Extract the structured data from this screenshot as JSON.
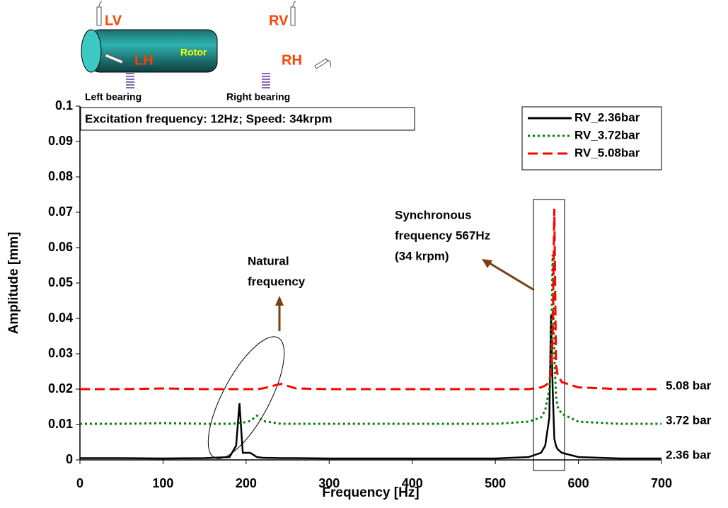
{
  "chart_data": {
    "type": "line",
    "x_label": "Frequency [Hz]",
    "y_label": "Amplitude [mm]",
    "x": [
      0,
      50,
      100,
      150,
      180,
      188,
      192,
      196,
      205,
      213,
      220,
      242,
      260,
      300,
      400,
      500,
      540,
      555,
      560,
      565,
      567,
      569,
      571,
      573,
      575,
      580,
      600,
      650,
      700
    ],
    "series": [
      {
        "name": "RV_2.36bar",
        "color": "#000000",
        "dash": "solid",
        "end_label": "2.36 bar",
        "values": [
          0.0005,
          0.0005,
          0.0004,
          0.0005,
          0.0008,
          0.004,
          0.016,
          0.002,
          0.002,
          0.0008,
          0.0006,
          0.0005,
          0.0005,
          0.0004,
          0.0004,
          0.0004,
          0.0008,
          0.002,
          0.004,
          0.012,
          0.041,
          0.02,
          0.006,
          0.004,
          0.003,
          0.002,
          0.0008,
          0.0004,
          0.0004
        ]
      },
      {
        "name": "RV_3.72bar",
        "color": "#008000",
        "dash": "dot",
        "end_label": "3.72 bar",
        "values": [
          0.0102,
          0.0102,
          0.0104,
          0.0102,
          0.0102,
          0.0103,
          0.0105,
          0.0105,
          0.011,
          0.0125,
          0.011,
          0.0102,
          0.0102,
          0.0102,
          0.0102,
          0.0102,
          0.0108,
          0.012,
          0.014,
          0.02,
          0.03,
          0.058,
          0.03,
          0.018,
          0.015,
          0.013,
          0.0108,
          0.0102,
          0.0102
        ]
      },
      {
        "name": "RV_5.08bar",
        "color": "#ff0000",
        "dash": "dash",
        "end_label": "5.08 bar",
        "values": [
          0.02,
          0.02,
          0.0202,
          0.02,
          0.02,
          0.02,
          0.02,
          0.02,
          0.02,
          0.02,
          0.0202,
          0.0215,
          0.0202,
          0.02,
          0.02,
          0.02,
          0.02,
          0.0205,
          0.021,
          0.022,
          0.025,
          0.035,
          0.071,
          0.027,
          0.024,
          0.022,
          0.0205,
          0.02,
          0.02
        ]
      }
    ],
    "xlim": [
      0,
      700
    ],
    "ylim": [
      0,
      0.1
    ],
    "xticks": [
      0,
      100,
      200,
      300,
      400,
      500,
      600,
      700
    ],
    "yticks": [
      0,
      0.01,
      0.02,
      0.03,
      0.04,
      0.05,
      0.06,
      0.07,
      0.08,
      0.09,
      0.1
    ],
    "legend": "top-right",
    "info_box": "Excitation frequency: 12Hz; Speed: 34krpm",
    "annotations": [
      {
        "lines": [
          "Natural",
          "frequency"
        ]
      },
      {
        "lines": [
          "Synchronous",
          "frequency 567Hz",
          "(34 krpm)"
        ]
      }
    ]
  },
  "diagram": {
    "rotor": "Rotor",
    "probes": [
      "LV",
      "RV",
      "LH",
      "RH"
    ],
    "bearings": [
      "Left bearing",
      "Right bearing"
    ]
  }
}
